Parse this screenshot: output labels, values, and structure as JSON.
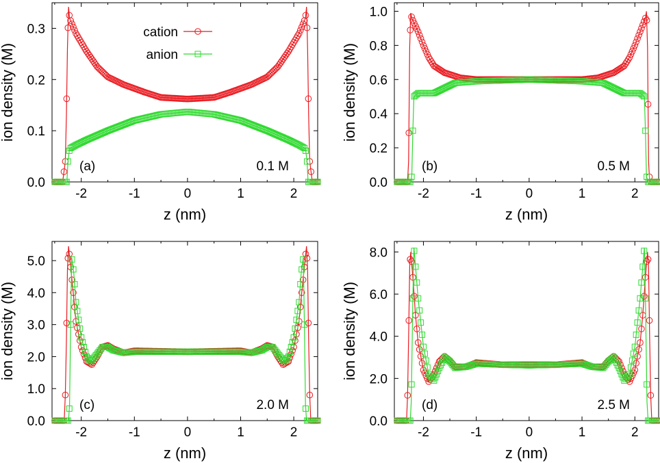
{
  "colors": {
    "cation": "#e8191f",
    "anion": "#2fd92f",
    "axis": "#000000"
  },
  "legend": {
    "cation_label": "cation",
    "anion_label": "anion"
  },
  "chart_data": [
    {
      "type": "line",
      "panel_label": "(a)",
      "annotation": "0.1 M",
      "xlabel": "z (nm)",
      "ylabel": "ion density (M)",
      "xlim": [
        -2.55,
        2.45
      ],
      "ylim": [
        0,
        0.35
      ],
      "xticks": [
        "-2",
        "-1",
        "0",
        "1",
        "2"
      ],
      "xtick_values": [
        -2,
        -1,
        0,
        1,
        2
      ],
      "yticks": [
        "0.0",
        "0.1",
        "0.2",
        "0.3"
      ],
      "ytick_values": [
        0,
        0.1,
        0.2,
        0.3
      ],
      "series": [
        {
          "name": "cation",
          "points": [
            [
              -2.5,
              0
            ],
            [
              -2.35,
              0
            ],
            [
              -2.3,
              0.04
            ],
            [
              -2.28,
              0.13
            ],
            [
              -2.26,
              0.26
            ],
            [
              -2.24,
              0.342
            ],
            [
              -2.22,
              0.32
            ],
            [
              -2.1,
              0.29
            ],
            [
              -1.9,
              0.255
            ],
            [
              -1.7,
              0.225
            ],
            [
              -1.5,
              0.205
            ],
            [
              -1.2,
              0.19
            ],
            [
              -0.8,
              0.175
            ],
            [
              -0.5,
              0.165
            ],
            [
              0,
              0.162
            ],
            [
              0.5,
              0.165
            ],
            [
              0.8,
              0.175
            ],
            [
              1.2,
              0.19
            ],
            [
              1.5,
              0.205
            ],
            [
              1.7,
              0.225
            ],
            [
              1.9,
              0.255
            ],
            [
              2.1,
              0.29
            ],
            [
              2.22,
              0.32
            ],
            [
              2.24,
              0.342
            ],
            [
              2.26,
              0.26
            ],
            [
              2.28,
              0.13
            ],
            [
              2.3,
              0.04
            ],
            [
              2.35,
              0
            ],
            [
              2.45,
              0
            ]
          ]
        },
        {
          "name": "anion",
          "points": [
            [
              -2.5,
              0
            ],
            [
              -2.27,
              0
            ],
            [
              -2.25,
              0.04
            ],
            [
              -2.22,
              0.065
            ],
            [
              -2.1,
              0.072
            ],
            [
              -1.9,
              0.082
            ],
            [
              -1.5,
              0.1
            ],
            [
              -1.0,
              0.12
            ],
            [
              -0.5,
              0.132
            ],
            [
              0,
              0.137
            ],
            [
              0.5,
              0.132
            ],
            [
              1.0,
              0.12
            ],
            [
              1.5,
              0.1
            ],
            [
              1.9,
              0.082
            ],
            [
              2.1,
              0.072
            ],
            [
              2.22,
              0.065
            ],
            [
              2.25,
              0.04
            ],
            [
              2.27,
              0
            ],
            [
              2.45,
              0
            ]
          ]
        }
      ]
    },
    {
      "type": "line",
      "panel_label": "(b)",
      "annotation": "0.5 M",
      "xlabel": "z (nm)",
      "ylabel": "ion density (M)",
      "xlim": [
        -2.55,
        2.45
      ],
      "ylim": [
        0,
        1.05
      ],
      "xticks": [
        "-2",
        "-1",
        "0",
        "1",
        "2"
      ],
      "xtick_values": [
        -2,
        -1,
        0,
        1,
        2
      ],
      "yticks": [
        "0.0",
        "0.2",
        "0.4",
        "0.6",
        "0.8",
        "1.0"
      ],
      "ytick_values": [
        0,
        0.2,
        0.4,
        0.6,
        0.8,
        1.0
      ],
      "series": [
        {
          "name": "cation",
          "points": [
            [
              -2.5,
              0
            ],
            [
              -2.3,
              0
            ],
            [
              -2.28,
              0.12
            ],
            [
              -2.26,
              0.79
            ],
            [
              -2.24,
              0.99
            ],
            [
              -2.22,
              0.96
            ],
            [
              -2.1,
              0.88
            ],
            [
              -2.0,
              0.8
            ],
            [
              -1.9,
              0.73
            ],
            [
              -1.8,
              0.68
            ],
            [
              -1.6,
              0.64
            ],
            [
              -1.3,
              0.61
            ],
            [
              -1.0,
              0.6
            ],
            [
              0,
              0.6
            ],
            [
              1.0,
              0.6
            ],
            [
              1.3,
              0.61
            ],
            [
              1.6,
              0.64
            ],
            [
              1.8,
              0.68
            ],
            [
              1.9,
              0.73
            ],
            [
              2.0,
              0.8
            ],
            [
              2.1,
              0.88
            ],
            [
              2.2,
              0.96
            ],
            [
              2.22,
              1.0
            ],
            [
              2.24,
              0.79
            ],
            [
              2.26,
              0.12
            ],
            [
              2.28,
              0
            ],
            [
              2.45,
              0
            ]
          ]
        },
        {
          "name": "anion",
          "points": [
            [
              -2.5,
              0
            ],
            [
              -2.24,
              0
            ],
            [
              -2.22,
              0.04
            ],
            [
              -2.2,
              0.3
            ],
            [
              -2.18,
              0.5
            ],
            [
              -2.1,
              0.52
            ],
            [
              -1.8,
              0.52
            ],
            [
              -1.6,
              0.55
            ],
            [
              -1.4,
              0.58
            ],
            [
              -1.0,
              0.59
            ],
            [
              0,
              0.6
            ],
            [
              1.0,
              0.59
            ],
            [
              1.4,
              0.58
            ],
            [
              1.6,
              0.55
            ],
            [
              1.8,
              0.52
            ],
            [
              2.1,
              0.52
            ],
            [
              2.18,
              0.5
            ],
            [
              2.2,
              0.3
            ],
            [
              2.22,
              0.04
            ],
            [
              2.24,
              0
            ],
            [
              2.45,
              0
            ]
          ]
        }
      ]
    },
    {
      "type": "line",
      "panel_label": "(c)",
      "annotation": "2.0 M",
      "xlabel": "z (nm)",
      "ylabel": "ion density (M)",
      "xlim": [
        -2.55,
        2.45
      ],
      "ylim": [
        0,
        5.6
      ],
      "xticks": [
        "-2",
        "-1",
        "0",
        "1",
        "2"
      ],
      "xtick_values": [
        -2,
        -1,
        0,
        1,
        2
      ],
      "yticks": [
        "0.0",
        "1.0",
        "2.0",
        "3.0",
        "4.0",
        "5.0"
      ],
      "ytick_values": [
        0,
        1,
        2,
        3,
        4,
        5
      ],
      "series": [
        {
          "name": "cation",
          "points": [
            [
              -2.5,
              0
            ],
            [
              -2.32,
              0
            ],
            [
              -2.3,
              0.8
            ],
            [
              -2.28,
              2.5
            ],
            [
              -2.26,
              4.7
            ],
            [
              -2.24,
              5.45
            ],
            [
              -2.2,
              4.8
            ],
            [
              -2.15,
              4.0
            ],
            [
              -2.1,
              3.1
            ],
            [
              -2.0,
              2.3
            ],
            [
              -1.9,
              1.85
            ],
            [
              -1.8,
              1.75
            ],
            [
              -1.7,
              2.0
            ],
            [
              -1.6,
              2.3
            ],
            [
              -1.5,
              2.35
            ],
            [
              -1.4,
              2.25
            ],
            [
              -1.2,
              2.12
            ],
            [
              -1.0,
              2.18
            ],
            [
              0,
              2.15
            ],
            [
              1.0,
              2.18
            ],
            [
              1.2,
              2.12
            ],
            [
              1.4,
              2.25
            ],
            [
              1.5,
              2.35
            ],
            [
              1.6,
              2.3
            ],
            [
              1.7,
              2.0
            ],
            [
              1.8,
              1.75
            ],
            [
              1.9,
              1.85
            ],
            [
              2.0,
              2.3
            ],
            [
              2.1,
              3.1
            ],
            [
              2.15,
              4.0
            ],
            [
              2.2,
              4.8
            ],
            [
              2.24,
              5.45
            ],
            [
              2.26,
              4.7
            ],
            [
              2.28,
              2.5
            ],
            [
              2.3,
              0.8
            ],
            [
              2.32,
              0
            ],
            [
              2.45,
              0
            ]
          ]
        },
        {
          "name": "anion",
          "points": [
            [
              -2.5,
              0
            ],
            [
              -2.24,
              0
            ],
            [
              -2.22,
              0.5
            ],
            [
              -2.2,
              3.0
            ],
            [
              -2.18,
              5.1
            ],
            [
              -2.14,
              4.6
            ],
            [
              -2.1,
              3.7
            ],
            [
              -2.0,
              2.6
            ],
            [
              -1.9,
              2.0
            ],
            [
              -1.82,
              1.85
            ],
            [
              -1.72,
              2.05
            ],
            [
              -1.6,
              2.3
            ],
            [
              -1.5,
              2.3
            ],
            [
              -1.4,
              2.2
            ],
            [
              -1.2,
              2.12
            ],
            [
              -1.0,
              2.15
            ],
            [
              0,
              2.15
            ],
            [
              1.0,
              2.15
            ],
            [
              1.2,
              2.12
            ],
            [
              1.4,
              2.2
            ],
            [
              1.5,
              2.3
            ],
            [
              1.6,
              2.3
            ],
            [
              1.72,
              2.05
            ],
            [
              1.82,
              1.85
            ],
            [
              1.9,
              2.0
            ],
            [
              2.0,
              2.6
            ],
            [
              2.1,
              3.7
            ],
            [
              2.14,
              4.6
            ],
            [
              2.18,
              5.1
            ],
            [
              2.2,
              3.0
            ],
            [
              2.22,
              0.5
            ],
            [
              2.24,
              0
            ],
            [
              2.45,
              0
            ]
          ]
        }
      ]
    },
    {
      "type": "line",
      "panel_label": "(d)",
      "annotation": "2.5 M",
      "xlabel": "z (nm)",
      "ylabel": "ion density (M)",
      "xlim": [
        -2.55,
        2.45
      ],
      "ylim": [
        0,
        8.5
      ],
      "xticks": [
        "-2",
        "-1",
        "0",
        "1",
        "2"
      ],
      "xtick_values": [
        -2,
        -1,
        0,
        1,
        2
      ],
      "yticks": [
        "0.0",
        "2.0",
        "4.0",
        "6.0",
        "8.0"
      ],
      "ytick_values": [
        0,
        2,
        4,
        6,
        8
      ],
      "series": [
        {
          "name": "cation",
          "points": [
            [
              -2.5,
              0
            ],
            [
              -2.32,
              0
            ],
            [
              -2.3,
              1.2
            ],
            [
              -2.28,
              3.9
            ],
            [
              -2.26,
              7.3
            ],
            [
              -2.24,
              8.0
            ],
            [
              -2.2,
              6.8
            ],
            [
              -2.15,
              5.0
            ],
            [
              -2.1,
              3.7
            ],
            [
              -2.0,
              2.4
            ],
            [
              -1.9,
              1.85
            ],
            [
              -1.8,
              2.2
            ],
            [
              -1.7,
              2.8
            ],
            [
              -1.6,
              3.05
            ],
            [
              -1.5,
              2.85
            ],
            [
              -1.4,
              2.55
            ],
            [
              -1.2,
              2.55
            ],
            [
              -1.0,
              2.75
            ],
            [
              -0.5,
              2.65
            ],
            [
              0,
              2.65
            ],
            [
              0.5,
              2.65
            ],
            [
              1.0,
              2.75
            ],
            [
              1.2,
              2.55
            ],
            [
              1.4,
              2.55
            ],
            [
              1.5,
              2.85
            ],
            [
              1.6,
              3.05
            ],
            [
              1.7,
              2.8
            ],
            [
              1.8,
              2.2
            ],
            [
              1.9,
              1.85
            ],
            [
              2.0,
              2.4
            ],
            [
              2.1,
              3.7
            ],
            [
              2.15,
              5.0
            ],
            [
              2.2,
              6.8
            ],
            [
              2.24,
              8.0
            ],
            [
              2.26,
              7.3
            ],
            [
              2.28,
              3.9
            ],
            [
              2.3,
              1.2
            ],
            [
              2.32,
              0
            ],
            [
              2.45,
              0
            ]
          ]
        },
        {
          "name": "anion",
          "points": [
            [
              -2.5,
              0
            ],
            [
              -2.25,
              0
            ],
            [
              -2.23,
              0.9
            ],
            [
              -2.2,
              5.8
            ],
            [
              -2.18,
              8.2
            ],
            [
              -2.14,
              7.0
            ],
            [
              -2.1,
              5.8
            ],
            [
              -2.0,
              3.5
            ],
            [
              -1.9,
              2.2
            ],
            [
              -1.8,
              1.9
            ],
            [
              -1.7,
              2.5
            ],
            [
              -1.6,
              3.0
            ],
            [
              -1.5,
              2.8
            ],
            [
              -1.4,
              2.5
            ],
            [
              -1.2,
              2.55
            ],
            [
              -1.0,
              2.7
            ],
            [
              -0.5,
              2.65
            ],
            [
              0,
              2.62
            ],
            [
              0.5,
              2.65
            ],
            [
              1.0,
              2.7
            ],
            [
              1.2,
              2.55
            ],
            [
              1.4,
              2.5
            ],
            [
              1.5,
              2.8
            ],
            [
              1.6,
              3.0
            ],
            [
              1.7,
              2.5
            ],
            [
              1.8,
              1.9
            ],
            [
              1.9,
              2.2
            ],
            [
              2.0,
              3.5
            ],
            [
              2.1,
              5.8
            ],
            [
              2.14,
              7.0
            ],
            [
              2.18,
              8.2
            ],
            [
              2.2,
              5.8
            ],
            [
              2.23,
              0.9
            ],
            [
              2.25,
              0
            ],
            [
              2.45,
              0
            ]
          ]
        }
      ]
    }
  ]
}
